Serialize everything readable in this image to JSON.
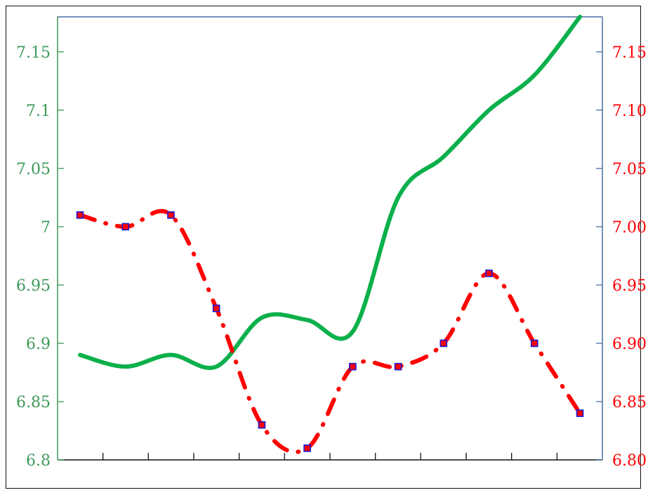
{
  "chart_data": {
    "type": "line",
    "title": "",
    "xlabel": "",
    "ylabel": "",
    "x": [
      1,
      2,
      3,
      4,
      5,
      6,
      7,
      8,
      9,
      10,
      11,
      12
    ],
    "x_axis_minor_ticks": 11,
    "series": [
      {
        "name": "",
        "axis": "left",
        "style": "solid",
        "color": "#0bb04b",
        "values": [
          6.89,
          6.88,
          6.89,
          6.88,
          6.922,
          6.92,
          6.91,
          7.025,
          7.06,
          7.1,
          7.13,
          7.18
        ]
      },
      {
        "name": "",
        "axis": "right",
        "style": "dash-dot",
        "color": "#ff0000",
        "marker": "square",
        "marker_color": "#1a1ad9",
        "values": [
          7.01,
          7.0,
          7.01,
          6.93,
          6.83,
          6.81,
          6.88,
          6.88,
          6.9,
          6.96,
          6.9,
          6.84
        ]
      }
    ],
    "left_axis": {
      "color": "#3c9a5a",
      "ylim": [
        6.8,
        7.18
      ],
      "ticks": [
        6.8,
        6.85,
        6.9,
        6.95,
        7.0,
        7.05,
        7.1,
        7.15
      ],
      "tick_labels": [
        "6.8",
        "6.85",
        "6.9",
        "6.95",
        "7",
        "7.05",
        "7.1",
        "7.15"
      ]
    },
    "right_axis": {
      "color": "#ff0000",
      "ylim": [
        6.8,
        7.18
      ],
      "ticks": [
        6.8,
        6.85,
        6.9,
        6.95,
        7.0,
        7.05,
        7.1,
        7.15
      ],
      "tick_labels": [
        "6.80",
        "6.85",
        "6.90",
        "6.95",
        "7.00",
        "7.05",
        "7.10",
        "7.15"
      ]
    },
    "grid": false,
    "legend": "none"
  }
}
